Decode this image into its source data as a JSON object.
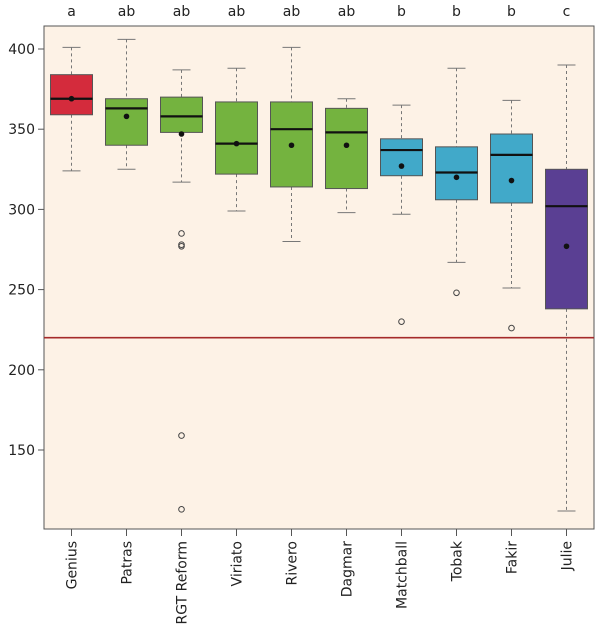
{
  "chart_data": {
    "type": "boxplot",
    "categories": [
      "Genius",
      "Patras",
      "RGT Reform",
      "Viriato",
      "Rivero",
      "Dagmar",
      "Matchball",
      "Tobak",
      "Fakir",
      "Julie"
    ],
    "group_letters": [
      "a",
      "ab",
      "ab",
      "ab",
      "ab",
      "ab",
      "b",
      "b",
      "b",
      "c"
    ],
    "boxes": [
      {
        "whisker_low": 324,
        "q1": 359,
        "median": 369,
        "q3": 384,
        "whisker_high": 401,
        "mean": 369,
        "outliers": []
      },
      {
        "whisker_low": 325,
        "q1": 340,
        "median": 363,
        "q3": 369,
        "whisker_high": 406,
        "mean": 358,
        "outliers": []
      },
      {
        "whisker_low": 317,
        "q1": 348,
        "median": 358,
        "q3": 370,
        "whisker_high": 387,
        "mean": 347,
        "outliers": [
          285,
          278,
          277,
          159,
          113
        ]
      },
      {
        "whisker_low": 299,
        "q1": 322,
        "median": 341,
        "q3": 367,
        "whisker_high": 388,
        "mean": 341,
        "outliers": []
      },
      {
        "whisker_low": 280,
        "q1": 314,
        "median": 350,
        "q3": 367,
        "whisker_high": 401,
        "mean": 340,
        "outliers": []
      },
      {
        "whisker_low": 298,
        "q1": 313,
        "median": 348,
        "q3": 363,
        "whisker_high": 369,
        "mean": 340,
        "outliers": []
      },
      {
        "whisker_low": 297,
        "q1": 321,
        "median": 337,
        "q3": 344,
        "whisker_high": 365,
        "mean": 327,
        "outliers": [
          230
        ]
      },
      {
        "whisker_low": 267,
        "q1": 306,
        "median": 323,
        "q3": 339,
        "whisker_high": 388,
        "mean": 320,
        "outliers": [
          248
        ]
      },
      {
        "whisker_low": 251,
        "q1": 304,
        "median": 334,
        "q3": 347,
        "whisker_high": 368,
        "mean": 318,
        "outliers": [
          226
        ]
      },
      {
        "whisker_low": 112,
        "q1": 238,
        "median": 302,
        "q3": 325,
        "whisker_high": 390,
        "mean": 277,
        "outliers": []
      }
    ],
    "colors": [
      "#d42b3c",
      "#74b33f",
      "#74b33f",
      "#74b33f",
      "#74b33f",
      "#74b33f",
      "#41a9c9",
      "#41a9c9",
      "#41a9c9",
      "#5a3f93"
    ],
    "reference_line": 220,
    "reference_color": "#a52a2a",
    "yticks": [
      150,
      200,
      250,
      300,
      350,
      400
    ],
    "ylim": [
      100,
      415
    ],
    "title": "",
    "xlabel": "",
    "ylabel": "",
    "background": "#fdf2e6"
  }
}
